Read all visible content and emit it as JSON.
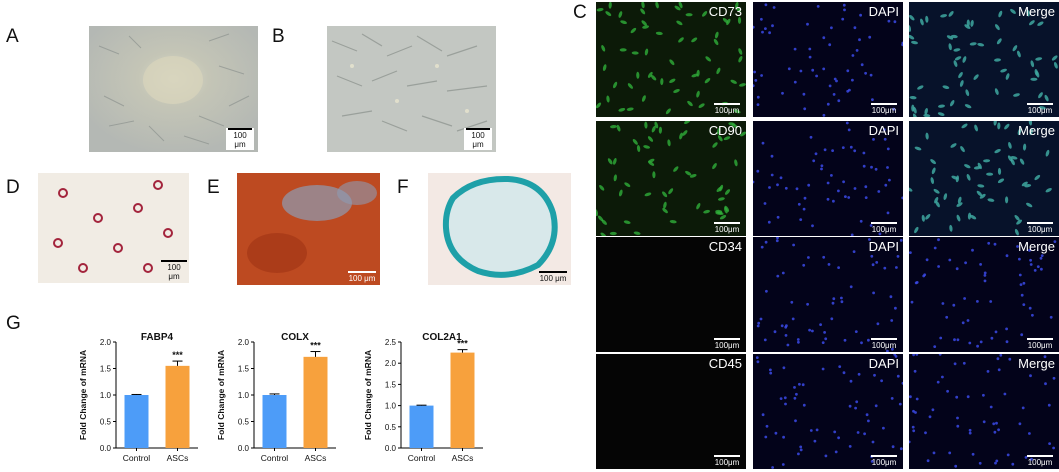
{
  "panels": {
    "A": "A",
    "B": "B",
    "C": "C",
    "D": "D",
    "E": "E",
    "F": "F",
    "G": "G"
  },
  "scale_bars": {
    "A": "100 μm",
    "B": "100 μm",
    "D": "100 μm",
    "E": "100 μm",
    "F": "100 μm",
    "fluor": "100μm"
  },
  "fluorescence": {
    "rows": [
      {
        "marker": "CD73",
        "dapi": "DAPI",
        "merge": "Merge"
      },
      {
        "marker": "CD90",
        "dapi": "DAPI",
        "merge": "Merge"
      },
      {
        "marker": "CD34",
        "dapi": "DAPI",
        "merge": "Merge"
      },
      {
        "marker": "CD45",
        "dapi": "DAPI",
        "merge": "Merge"
      }
    ]
  },
  "colors": {
    "control": "#4d9cf8",
    "ascs": "#f7a13d",
    "green": "#2fae3a",
    "blue": "#2233cc"
  },
  "chart_data": [
    {
      "type": "bar",
      "title": "FABP4",
      "ylabel": "Fold Change of mRNA",
      "categories": [
        "Control",
        "ASCs"
      ],
      "values": [
        1.0,
        1.55
      ],
      "errors": [
        0.01,
        0.09
      ],
      "ylim": [
        0,
        2.0
      ],
      "yticks": [
        "0.0",
        "0.5",
        "1.0",
        "1.5",
        "2.0"
      ],
      "significance": "***"
    },
    {
      "type": "bar",
      "title": "COLX",
      "ylabel": "Fold Change of mRNA",
      "categories": [
        "Control",
        "ASCs"
      ],
      "values": [
        1.0,
        1.72
      ],
      "errors": [
        0.02,
        0.1
      ],
      "ylim": [
        0,
        2.0
      ],
      "yticks": [
        "0.0",
        "0.5",
        "1.0",
        "1.5",
        "2.0"
      ],
      "significance": "***"
    },
    {
      "type": "bar",
      "title": "COL2A1",
      "ylabel": "Fold Change of mRNA",
      "categories": [
        "Control",
        "ASCs"
      ],
      "values": [
        1.0,
        2.25
      ],
      "errors": [
        0.01,
        0.07
      ],
      "ylim": [
        0,
        2.5
      ],
      "yticks": [
        "0.0",
        "0.5",
        "1.0",
        "1.5",
        "2.0",
        "2.5"
      ],
      "significance": "***"
    }
  ]
}
